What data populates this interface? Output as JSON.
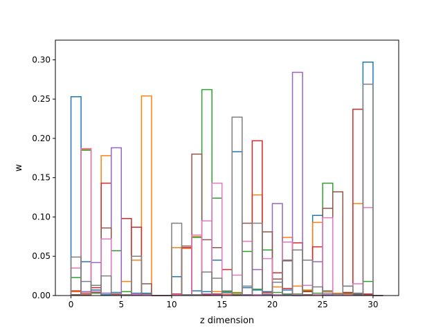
{
  "chart_data": {
    "type": "bar",
    "style": "step-histogram",
    "xlabel": "z dimension",
    "ylabel": "w",
    "xlim": [
      -1.55,
      32.55
    ],
    "ylim": [
      0,
      0.325
    ],
    "x_ticks": [
      0,
      5,
      10,
      15,
      20,
      25,
      30
    ],
    "y_ticks": [
      0.0,
      0.05,
      0.1,
      0.15,
      0.2,
      0.25,
      0.3
    ],
    "bins": 31,
    "bin_start": 0,
    "bin_width": 1,
    "grid": false,
    "legend": "none",
    "series": [
      {
        "color": "#1f77b4",
        "values": [
          0.253,
          0.043,
          0.007,
          0.001,
          0.004,
          0.001,
          0.003,
          0.003,
          0,
          0,
          0.024,
          0.061,
          0.006,
          0.005,
          0.045,
          0.004,
          0.183,
          0.01,
          0.007,
          0.005,
          0.001,
          0.007,
          0,
          0.013,
          0.102,
          0.006,
          0.002,
          0.012,
          0.002,
          0.297,
          0
        ]
      },
      {
        "color": "#ff7f0e",
        "values": [
          0.005,
          0.186,
          0.005,
          0.178,
          0.002,
          0.018,
          0.045,
          0.254,
          0,
          0,
          0.061,
          0.06,
          0.075,
          0.002,
          0.005,
          0.002,
          0.004,
          0.001,
          0.128,
          0.001,
          0.011,
          0.074,
          0.012,
          0.007,
          0.093,
          0.005,
          0.003,
          0.002,
          0.117,
          0.001,
          0
        ]
      },
      {
        "color": "#2ca02c",
        "values": [
          0.023,
          0.185,
          0.003,
          0.003,
          0.057,
          0.005,
          0.002,
          0.002,
          0,
          0,
          0.001,
          0.001,
          0.074,
          0.262,
          0.124,
          0.005,
          0.003,
          0.056,
          0.008,
          0.058,
          0.004,
          0.002,
          0.002,
          0.006,
          0.003,
          0.143,
          0.002,
          0.003,
          0.003,
          0.018,
          0
        ]
      },
      {
        "color": "#d62728",
        "values": [
          0.006,
          0.003,
          0.01,
          0.143,
          0.002,
          0.098,
          0.087,
          0.001,
          0,
          0,
          0.002,
          0.061,
          0.001,
          0.001,
          0.002,
          0.033,
          0.001,
          0.001,
          0.197,
          0.004,
          0.029,
          0.009,
          0.067,
          0.005,
          0.062,
          0.001,
          0.002,
          0.004,
          0.237,
          0.002,
          0
        ]
      },
      {
        "color": "#9467bd",
        "values": [
          0.001,
          0.005,
          0.042,
          0.003,
          0.188,
          0.001,
          0.001,
          0.001,
          0,
          0,
          0.001,
          0.001,
          0.001,
          0.002,
          0.001,
          0.001,
          0.001,
          0.001,
          0.033,
          0.001,
          0.117,
          0.001,
          0.284,
          0.001,
          0.043,
          0.001,
          0.001,
          0.001,
          0.001,
          0.001,
          0
        ]
      },
      {
        "color": "#8c564b",
        "values": [
          0.001,
          0.001,
          0.004,
          0.086,
          0.001,
          0.001,
          0.05,
          0.015,
          0,
          0,
          0.001,
          0.063,
          0.18,
          0.071,
          0.061,
          0.001,
          0.001,
          0.092,
          0.001,
          0.081,
          0.021,
          0.045,
          0.001,
          0.001,
          0.001,
          0.111,
          0.132,
          0.001,
          0.001,
          0.001,
          0
        ]
      },
      {
        "color": "#e377c2",
        "values": [
          0.035,
          0.187,
          0.005,
          0.072,
          0.001,
          0.001,
          0.002,
          0.001,
          0,
          0,
          0.001,
          0.001,
          0.077,
          0.095,
          0.143,
          0.001,
          0.026,
          0.069,
          0.001,
          0.047,
          0.001,
          0.068,
          0.001,
          0.013,
          0.001,
          0.099,
          0.001,
          0.001,
          0.015,
          0.112,
          0
        ]
      },
      {
        "color": "#7f7f7f",
        "values": [
          0.049,
          0.018,
          0.013,
          0.025,
          0.001,
          0.001,
          0.05,
          0.002,
          0,
          0,
          0.092,
          0.001,
          0.001,
          0.03,
          0.022,
          0.006,
          0.227,
          0.012,
          0.092,
          0.002,
          0.017,
          0.044,
          0.058,
          0.045,
          0.011,
          0.003,
          0.002,
          0.012,
          0.003,
          0.269,
          0
        ]
      }
    ]
  }
}
